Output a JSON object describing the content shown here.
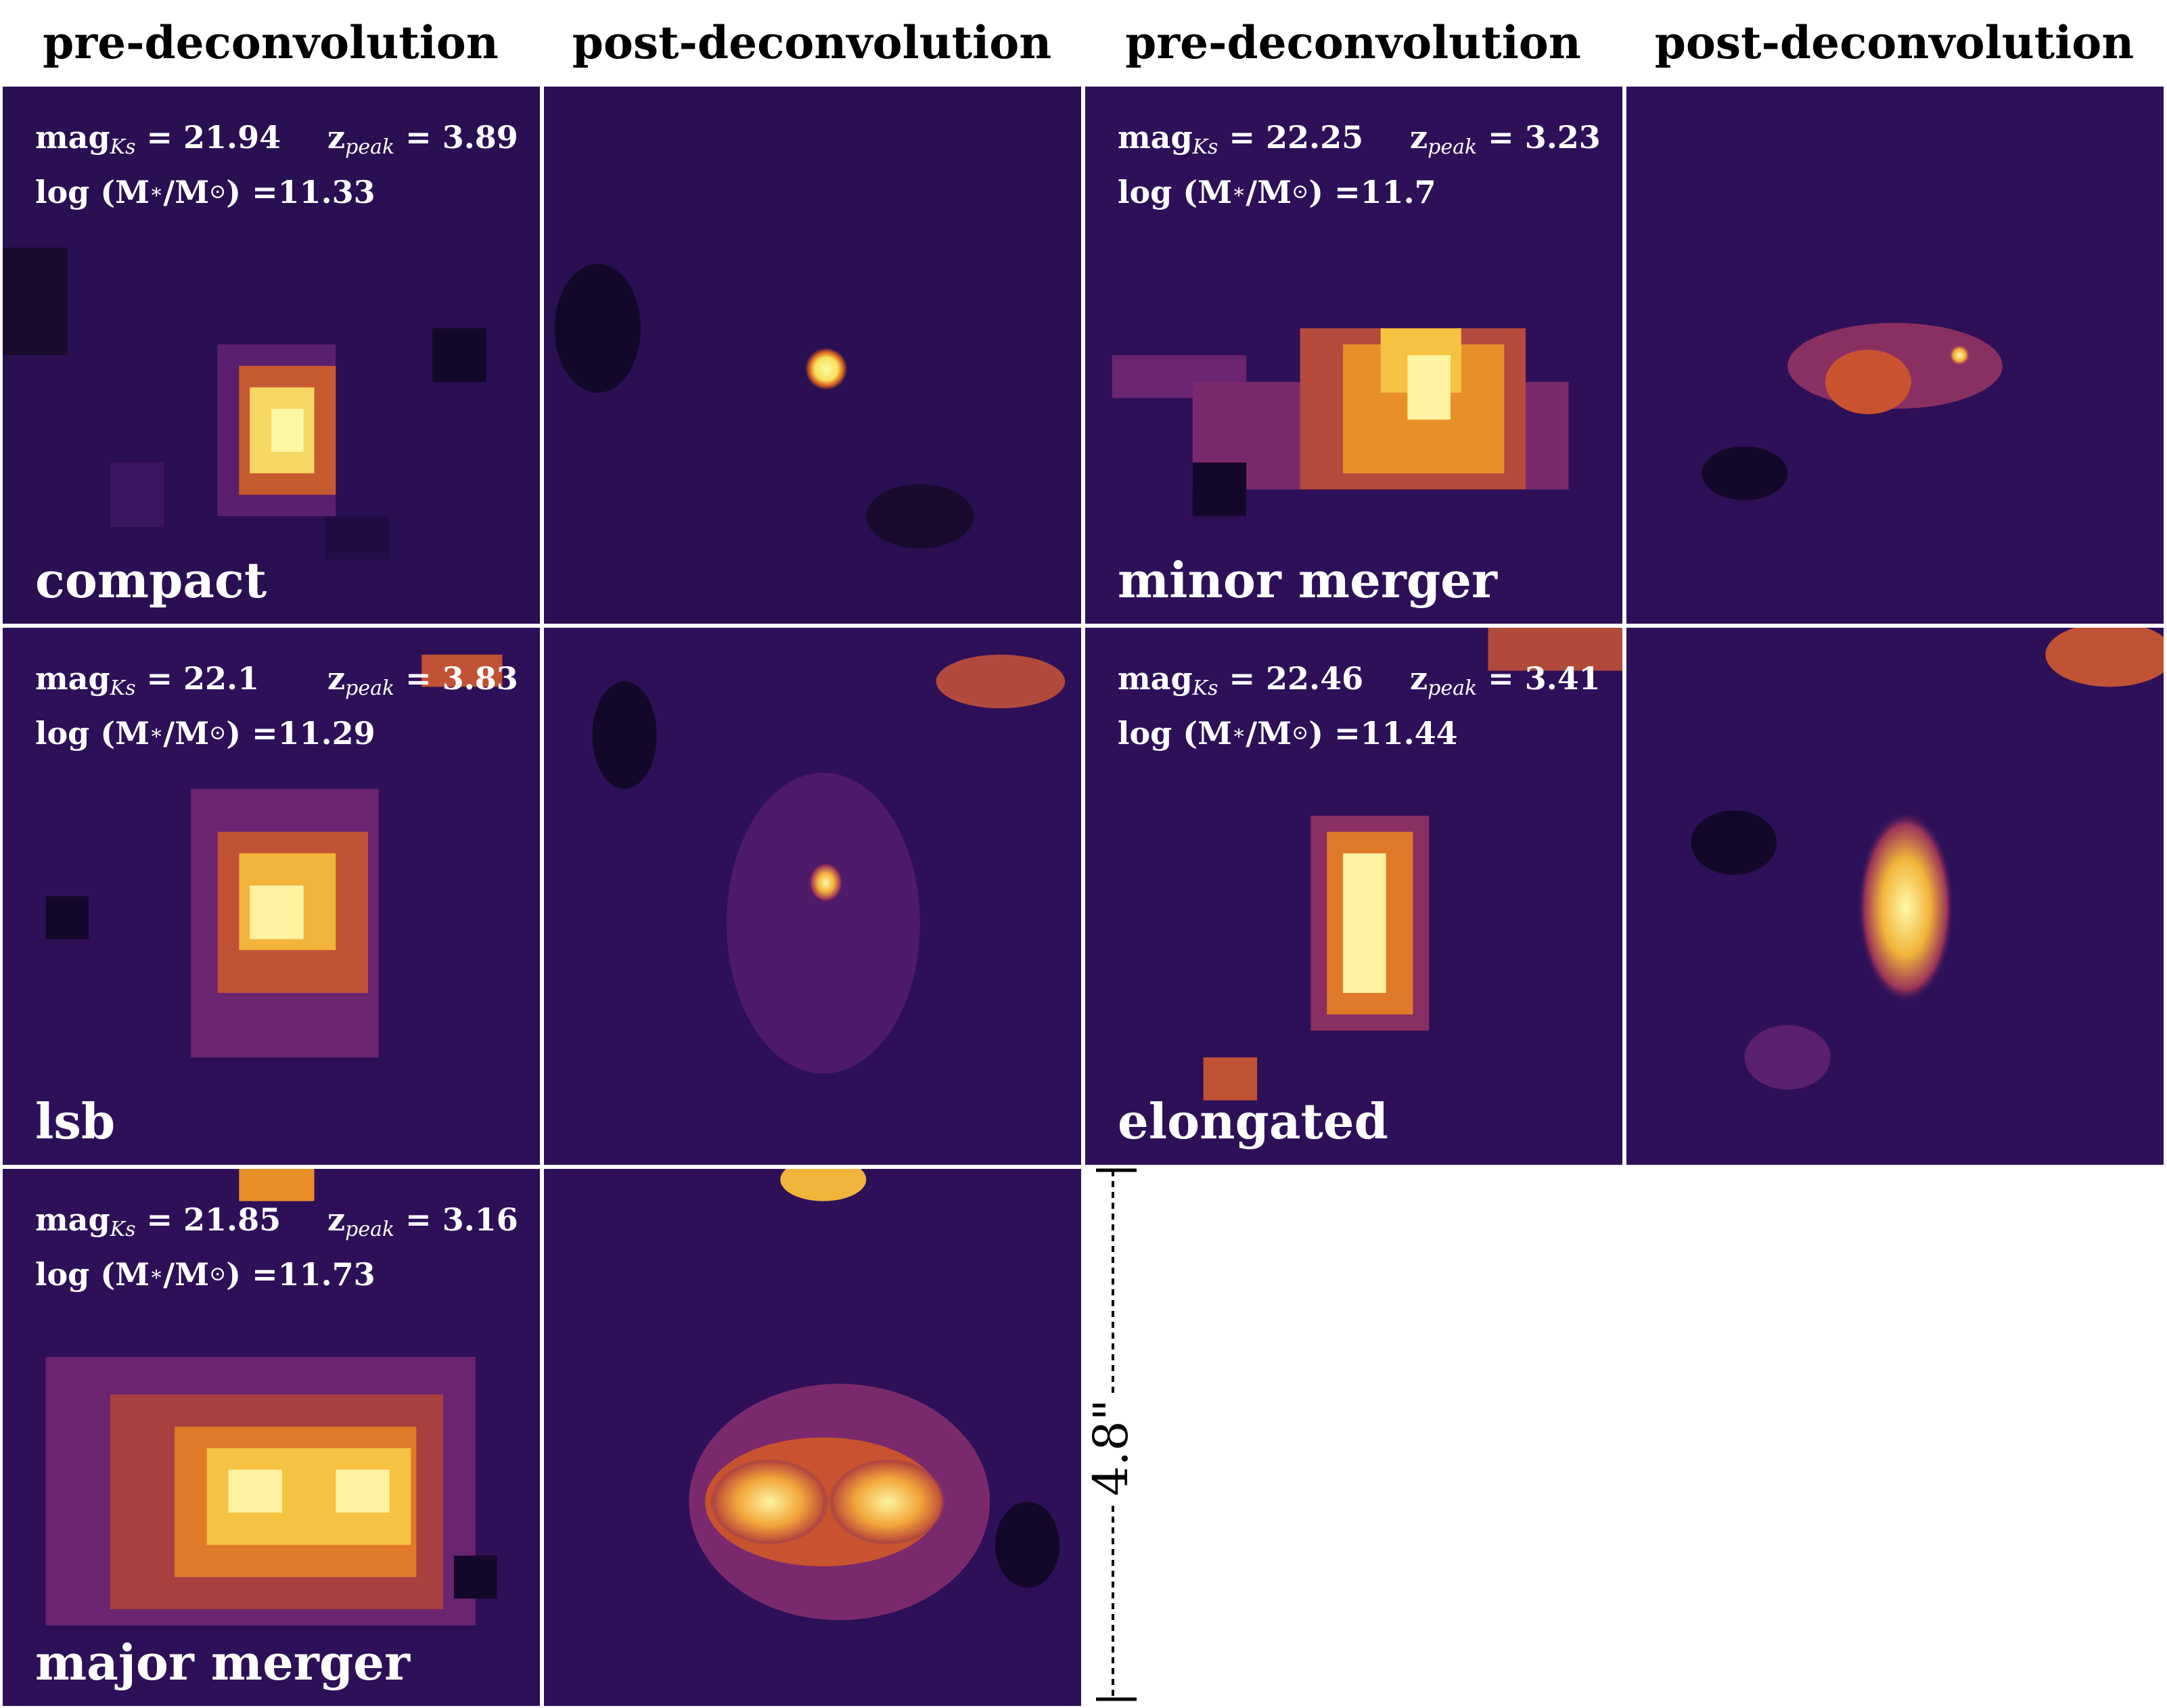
{
  "column_headers": [
    "pre-deconvolution",
    "post-deconvolution",
    "pre-deconvolution",
    "post-deconvolution"
  ],
  "panels": [
    {
      "mag": "21.94",
      "z": "3.89",
      "logm": "11.33",
      "class_label": "compact"
    },
    {
      "mag": "22.25",
      "z": "3.23",
      "logm": "11.7",
      "class_label": "minor merger"
    },
    {
      "mag": "22.1",
      "z": "3.83",
      "logm": "11.29",
      "class_label": "lsb"
    },
    {
      "mag": "22.46",
      "z": "3.41",
      "logm": "11.44",
      "class_label": "elongated"
    },
    {
      "mag": "21.85",
      "z": "3.16",
      "logm": "11.73",
      "class_label": "major merger"
    }
  ],
  "text": {
    "mag_prefix": "mag",
    "mag_sub": "Ks",
    "z_prefix": "z",
    "z_sub": "peak",
    "equals": " = ",
    "logm_prefix": "log (M",
    "logm_star": "∗",
    "logm_mid": "/M",
    "logm_sun": "⊙",
    "logm_suffix": ") = "
  },
  "scale_bar": {
    "label": "4.8\""
  },
  "colors": {
    "colormap": "inferno",
    "background": "#1e0b3a",
    "text": "#ffffff"
  }
}
